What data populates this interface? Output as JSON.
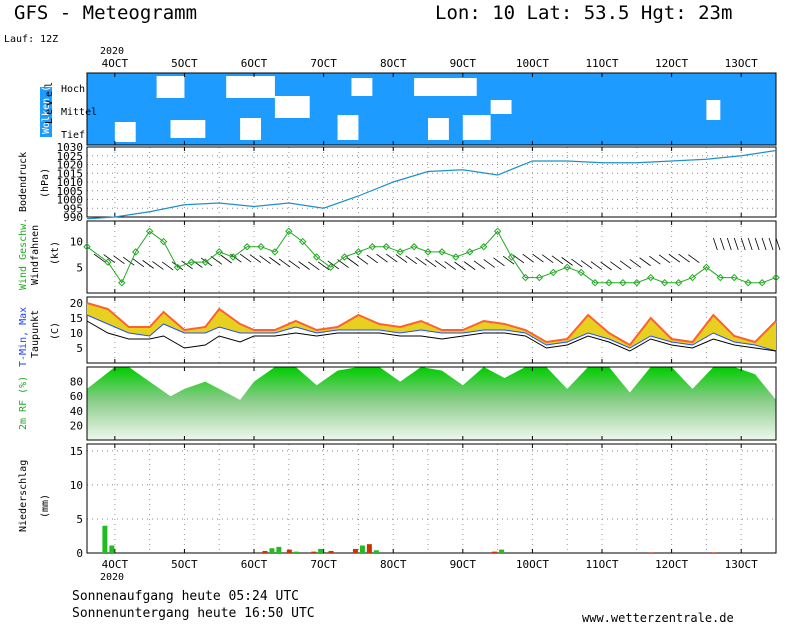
{
  "header": {
    "title": "GFS - Meteogramm",
    "location": "Lon: 10 Lat: 53.5 Hgt: 23m",
    "run": "Lauf: 12Z",
    "year": "2020"
  },
  "dates": [
    "4OCT",
    "5OCT",
    "6OCT",
    "7OCT",
    "8OCT",
    "9OCT",
    "10OCT",
    "11OCT",
    "12OCT",
    "13OCT"
  ],
  "footer": {
    "sunrise": "Sonnenaufgang heute 05:24 UTC",
    "sunset": "Sonnenuntergang heute 16:50 UTC",
    "site": "www.wetterzentrale.de"
  },
  "colors": {
    "cloud_bg": "#1e9bff",
    "pressure": "#1e90c8",
    "wind": "#22aa22",
    "tmax_fill": "#e8d020",
    "tmin_fill": "#30b030",
    "tmax_line": "#ff6030",
    "tmin_line": "#2050ff",
    "dewpoint": "#000000",
    "rain_green": "#22bb22",
    "rain_red": "#cc3300"
  },
  "chart_data": [
    {
      "type": "area",
      "panel": "clouds",
      "title": "Wolken (%)",
      "ylabel": "Level",
      "levels": [
        "Hoch",
        "Mittel",
        "Tief"
      ]
    },
    {
      "type": "line",
      "panel": "pressure",
      "title": "Bodendruck",
      "ylabel": "(hPa)",
      "ylim": [
        990,
        1030
      ],
      "yticks": [
        990,
        995,
        1000,
        1005,
        1010,
        1015,
        1020,
        1025,
        1030
      ],
      "x_days": [
        3.6,
        4.0,
        4.5,
        5.0,
        5.5,
        6.0,
        6.5,
        7.0,
        7.5,
        8.0,
        8.5,
        9.0,
        9.5,
        10.0,
        10.5,
        11.0,
        11.5,
        12.0,
        12.5,
        13.0,
        13.5
      ],
      "values": [
        989,
        990,
        993,
        997,
        998,
        996,
        998,
        995,
        1002,
        1010,
        1016,
        1017,
        1014,
        1022,
        1022,
        1021,
        1021,
        1022,
        1023,
        1025,
        1028
      ]
    },
    {
      "type": "line",
      "panel": "wind",
      "title": "Wind Geschw.",
      "subtitle": "Windfahnen",
      "ylabel": "(kt)",
      "ylim": [
        0,
        14
      ],
      "yticks": [
        5,
        10
      ],
      "x_days": [
        3.6,
        3.9,
        4.1,
        4.3,
        4.5,
        4.7,
        4.9,
        5.1,
        5.3,
        5.5,
        5.7,
        5.9,
        6.1,
        6.3,
        6.5,
        6.7,
        6.9,
        7.1,
        7.3,
        7.5,
        7.7,
        7.9,
        8.1,
        8.3,
        8.5,
        8.7,
        8.9,
        9.1,
        9.3,
        9.5,
        9.7,
        9.9,
        10.1,
        10.3,
        10.5,
        10.7,
        10.9,
        11.1,
        11.3,
        11.5,
        11.7,
        11.9,
        12.1,
        12.3,
        12.5,
        12.7,
        12.9,
        13.1,
        13.3,
        13.5
      ],
      "values": [
        9,
        6,
        2,
        8,
        12,
        10,
        5,
        6,
        6,
        8,
        7,
        9,
        9,
        8,
        12,
        10,
        7,
        5,
        7,
        8,
        9,
        9,
        8,
        9,
        8,
        8,
        7,
        8,
        9,
        12,
        7,
        3,
        3,
        4,
        5,
        4,
        2,
        2,
        2,
        2,
        3,
        2,
        2,
        3,
        5,
        3,
        3,
        2,
        2,
        3
      ]
    },
    {
      "type": "area",
      "panel": "temperature",
      "title": "T-Min, Max",
      "subtitle": "Taupunkt",
      "ylabel": "(C)",
      "ylim": [
        0,
        22
      ],
      "yticks": [
        5,
        10,
        15,
        20
      ],
      "x_days": [
        3.6,
        3.9,
        4.2,
        4.5,
        4.7,
        5.0,
        5.3,
        5.5,
        5.8,
        6.0,
        6.3,
        6.6,
        6.9,
        7.2,
        7.5,
        7.8,
        8.1,
        8.4,
        8.7,
        9.0,
        9.3,
        9.6,
        9.9,
        10.2,
        10.5,
        10.8,
        11.1,
        11.4,
        11.7,
        12.0,
        12.3,
        12.6,
        12.9,
        13.2,
        13.5
      ],
      "series": [
        {
          "name": "Max",
          "values": [
            20,
            18,
            12,
            12,
            17,
            11,
            12,
            18,
            13,
            11,
            11,
            14,
            11,
            12,
            16,
            13,
            12,
            14,
            11,
            11,
            14,
            13,
            11,
            7,
            8,
            16,
            10,
            6,
            15,
            8,
            7,
            16,
            9,
            7,
            14
          ]
        },
        {
          "name": "Min",
          "values": [
            16,
            13,
            10,
            9,
            13,
            10,
            10,
            12,
            10,
            10,
            10,
            12,
            10,
            11,
            11,
            11,
            10,
            11,
            10,
            10,
            11,
            11,
            10,
            6,
            7,
            10,
            8,
            5,
            9,
            7,
            6,
            10,
            7,
            6,
            4
          ]
        },
        {
          "name": "Taupunkt",
          "values": [
            14,
            10,
            8,
            8,
            9,
            5,
            6,
            9,
            7,
            9,
            9,
            10,
            9,
            10,
            10,
            10,
            9,
            9,
            8,
            9,
            10,
            10,
            9,
            5,
            6,
            9,
            7,
            4,
            8,
            6,
            5,
            8,
            6,
            5,
            4
          ]
        }
      ]
    },
    {
      "type": "area",
      "panel": "humidity",
      "title": "2m RF (%)",
      "ylim": [
        0,
        100
      ],
      "yticks": [
        20,
        40,
        60,
        80
      ],
      "x_days": [
        3.6,
        3.8,
        4.0,
        4.2,
        4.5,
        4.8,
        5.0,
        5.3,
        5.5,
        5.8,
        6.0,
        6.3,
        6.6,
        6.9,
        7.2,
        7.5,
        7.8,
        8.1,
        8.4,
        8.7,
        9.0,
        9.3,
        9.6,
        9.9,
        10.2,
        10.5,
        10.8,
        11.1,
        11.4,
        11.7,
        12.0,
        12.3,
        12.6,
        12.9,
        13.2,
        13.5
      ],
      "values": [
        70,
        85,
        100,
        100,
        80,
        60,
        70,
        80,
        70,
        55,
        80,
        100,
        100,
        75,
        95,
        100,
        100,
        80,
        100,
        95,
        75,
        100,
        85,
        100,
        100,
        70,
        100,
        100,
        65,
        100,
        100,
        70,
        100,
        100,
        90,
        55
      ]
    },
    {
      "type": "bar",
      "panel": "precipitation",
      "title": "Niederschlag",
      "ylabel": "(mm)",
      "ylim": [
        0,
        16
      ],
      "yticks": [
        0,
        5,
        10,
        15
      ],
      "x_days": [
        3.85,
        3.95,
        6.15,
        6.25,
        6.35,
        6.5,
        6.6,
        6.85,
        6.95,
        7.1,
        7.45,
        7.55,
        7.65,
        7.75,
        9.45,
        9.55,
        11.7,
        12.6
      ],
      "values": [
        4.0,
        1.1,
        0.3,
        0.7,
        0.9,
        0.5,
        0.2,
        0.2,
        0.6,
        0.3,
        0.6,
        1.1,
        1.3,
        0.4,
        0.2,
        0.5,
        0.1,
        0.1
      ],
      "kind": [
        "green",
        "green",
        "red",
        "green",
        "green",
        "red",
        "green",
        "red",
        "green",
        "red",
        "red",
        "green",
        "red",
        "green",
        "red",
        "green",
        "red",
        "red"
      ]
    }
  ]
}
